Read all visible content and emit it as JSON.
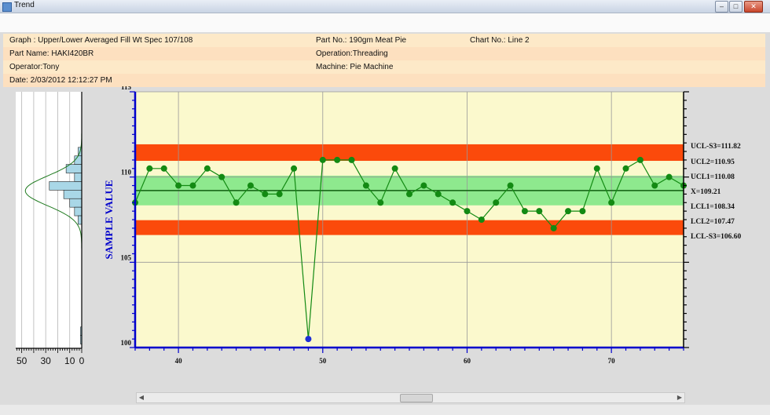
{
  "window": {
    "title": "Trend",
    "controls": {
      "minimize": "–",
      "maximize": "□",
      "close": "✕"
    }
  },
  "header": {
    "graph": "Graph : Upper/Lower Averaged Fill Wt Spec 107/108",
    "part_no": "Part No.: 190gm Meat Pie",
    "chart_no": "Chart No.: Line 2",
    "part_name": "Part Name: HAKI420BR",
    "operation": "Operation:Threading",
    "operator": "Operator:Tony",
    "machine": "Machine: Pie Machine",
    "date": "Date: 2/03/2012 12:12:27 PM"
  },
  "colors": {
    "plot_bg": "#fbf9cd",
    "green_zone": "#8ee98e",
    "red_zone": "#fb4a0b",
    "axis": "#0000cc",
    "series": "#138a13",
    "outlier": "#1f2fd6",
    "center_line": "#0f5f0f",
    "histogram_bar": "#a9d7e7"
  },
  "chart_data": {
    "type": "line",
    "ylabel": "SAMPLE VALUE",
    "xlim": [
      37,
      75
    ],
    "ylim": [
      100,
      115
    ],
    "x_ticks": [
      "40",
      "50",
      "60",
      "70"
    ],
    "y_ticks": [
      "100",
      "105",
      "110",
      "115"
    ],
    "x": [
      37,
      38,
      39,
      40,
      41,
      42,
      43,
      44,
      45,
      46,
      47,
      48,
      49,
      50,
      51,
      52,
      53,
      54,
      55,
      56,
      57,
      58,
      59,
      60,
      61,
      62,
      63,
      64,
      65,
      66,
      67,
      68,
      69,
      70,
      71,
      72,
      73,
      74,
      75
    ],
    "values": [
      108.5,
      110.5,
      110.5,
      109.5,
      109.5,
      110.5,
      110.0,
      108.5,
      109.5,
      109.0,
      109.0,
      110.5,
      100.5,
      111.0,
      111.0,
      111.0,
      109.5,
      108.5,
      110.5,
      109.0,
      109.5,
      109.0,
      108.5,
      108.0,
      107.5,
      108.5,
      109.5,
      108.0,
      108.0,
      107.0,
      108.0,
      108.0,
      110.5,
      108.5,
      110.5,
      111.0,
      109.5,
      110.0,
      109.5
    ],
    "outlier_x": 49,
    "control_limits": [
      {
        "label": "UCL-S3=111.82",
        "value": 111.82
      },
      {
        "label": "UCL2=110.95",
        "value": 110.95
      },
      {
        "label": "UCL1=110.08",
        "value": 110.08
      },
      {
        "label": "X=109.21",
        "value": 109.21
      },
      {
        "label": "LCL1=108.34",
        "value": 108.34
      },
      {
        "label": "LCL2=107.47",
        "value": 107.47
      },
      {
        "label": "LCL-S3=106.60",
        "value": 106.6
      }
    ],
    "histogram": {
      "x_ticks": [
        "50",
        "30",
        "10",
        "0"
      ],
      "bins": [
        {
          "value": 111.5,
          "count": 3
        },
        {
          "value": 111.0,
          "count": 6
        },
        {
          "value": 110.5,
          "count": 13
        },
        {
          "value": 110.0,
          "count": 6
        },
        {
          "value": 109.5,
          "count": 27
        },
        {
          "value": 109.0,
          "count": 15
        },
        {
          "value": 108.5,
          "count": 10
        },
        {
          "value": 108.0,
          "count": 6
        },
        {
          "value": 107.5,
          "count": 3
        },
        {
          "value": 101.0,
          "count": 1
        },
        {
          "value": 100.5,
          "count": 1
        }
      ]
    },
    "grid": true
  }
}
